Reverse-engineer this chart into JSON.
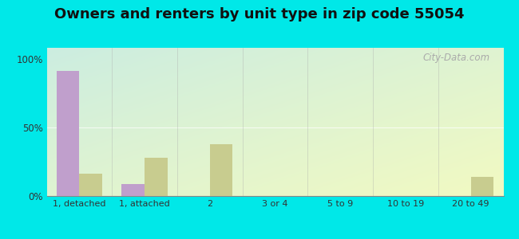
{
  "title": "Owners and renters by unit type in zip code 55054",
  "categories": [
    "1, detached",
    "1, attached",
    "2",
    "3 or 4",
    "5 to 9",
    "10 to 19",
    "20 to 49"
  ],
  "owner_values": [
    91,
    9,
    0,
    0,
    0,
    0,
    0
  ],
  "renter_values": [
    16,
    28,
    38,
    0,
    0,
    0,
    14
  ],
  "owner_color": "#c09fcc",
  "renter_color": "#c8cc8f",
  "yticks": [
    0,
    50,
    100
  ],
  "yticklabels": [
    "0%",
    "50%",
    "100%"
  ],
  "ylim": [
    0,
    108
  ],
  "background_outer": "#00e8e8",
  "bar_width": 0.35,
  "title_fontsize": 13,
  "watermark": "City-Data.com"
}
